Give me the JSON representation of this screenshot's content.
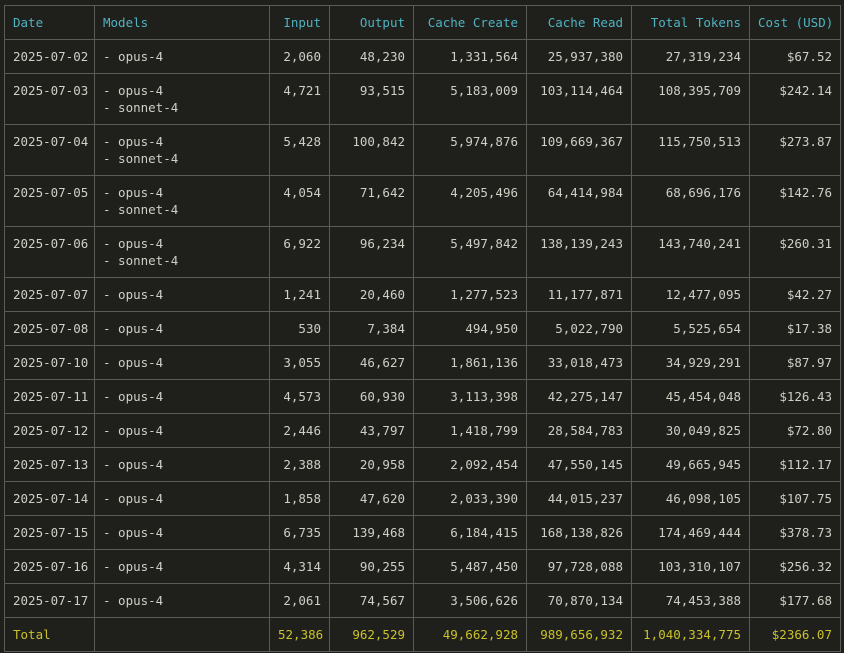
{
  "table": {
    "headers": {
      "date": "Date",
      "models": "Models",
      "input": "Input",
      "output": "Output",
      "cache_create": "Cache Create",
      "cache_read": "Cache Read",
      "total_tokens": "Total Tokens",
      "cost": "Cost (USD)"
    },
    "rows": [
      {
        "date": "2025-07-02",
        "models": [
          "- opus-4"
        ],
        "input": "2,060",
        "output": "48,230",
        "cache_create": "1,331,564",
        "cache_read": "25,937,380",
        "total_tokens": "27,319,234",
        "cost": "$67.52"
      },
      {
        "date": "2025-07-03",
        "models": [
          "- opus-4",
          "- sonnet-4"
        ],
        "input": "4,721",
        "output": "93,515",
        "cache_create": "5,183,009",
        "cache_read": "103,114,464",
        "total_tokens": "108,395,709",
        "cost": "$242.14"
      },
      {
        "date": "2025-07-04",
        "models": [
          "- opus-4",
          "- sonnet-4"
        ],
        "input": "5,428",
        "output": "100,842",
        "cache_create": "5,974,876",
        "cache_read": "109,669,367",
        "total_tokens": "115,750,513",
        "cost": "$273.87"
      },
      {
        "date": "2025-07-05",
        "models": [
          "- opus-4",
          "- sonnet-4"
        ],
        "input": "4,054",
        "output": "71,642",
        "cache_create": "4,205,496",
        "cache_read": "64,414,984",
        "total_tokens": "68,696,176",
        "cost": "$142.76"
      },
      {
        "date": "2025-07-06",
        "models": [
          "- opus-4",
          "- sonnet-4"
        ],
        "input": "6,922",
        "output": "96,234",
        "cache_create": "5,497,842",
        "cache_read": "138,139,243",
        "total_tokens": "143,740,241",
        "cost": "$260.31"
      },
      {
        "date": "2025-07-07",
        "models": [
          "- opus-4"
        ],
        "input": "1,241",
        "output": "20,460",
        "cache_create": "1,277,523",
        "cache_read": "11,177,871",
        "total_tokens": "12,477,095",
        "cost": "$42.27"
      },
      {
        "date": "2025-07-08",
        "models": [
          "- opus-4"
        ],
        "input": "530",
        "output": "7,384",
        "cache_create": "494,950",
        "cache_read": "5,022,790",
        "total_tokens": "5,525,654",
        "cost": "$17.38"
      },
      {
        "date": "2025-07-10",
        "models": [
          "- opus-4"
        ],
        "input": "3,055",
        "output": "46,627",
        "cache_create": "1,861,136",
        "cache_read": "33,018,473",
        "total_tokens": "34,929,291",
        "cost": "$87.97"
      },
      {
        "date": "2025-07-11",
        "models": [
          "- opus-4"
        ],
        "input": "4,573",
        "output": "60,930",
        "cache_create": "3,113,398",
        "cache_read": "42,275,147",
        "total_tokens": "45,454,048",
        "cost": "$126.43"
      },
      {
        "date": "2025-07-12",
        "models": [
          "- opus-4"
        ],
        "input": "2,446",
        "output": "43,797",
        "cache_create": "1,418,799",
        "cache_read": "28,584,783",
        "total_tokens": "30,049,825",
        "cost": "$72.80"
      },
      {
        "date": "2025-07-13",
        "models": [
          "- opus-4"
        ],
        "input": "2,388",
        "output": "20,958",
        "cache_create": "2,092,454",
        "cache_read": "47,550,145",
        "total_tokens": "49,665,945",
        "cost": "$112.17"
      },
      {
        "date": "2025-07-14",
        "models": [
          "- opus-4"
        ],
        "input": "1,858",
        "output": "47,620",
        "cache_create": "2,033,390",
        "cache_read": "44,015,237",
        "total_tokens": "46,098,105",
        "cost": "$107.75"
      },
      {
        "date": "2025-07-15",
        "models": [
          "- opus-4"
        ],
        "input": "6,735",
        "output": "139,468",
        "cache_create": "6,184,415",
        "cache_read": "168,138,826",
        "total_tokens": "174,469,444",
        "cost": "$378.73"
      },
      {
        "date": "2025-07-16",
        "models": [
          "- opus-4"
        ],
        "input": "4,314",
        "output": "90,255",
        "cache_create": "5,487,450",
        "cache_read": "97,728,088",
        "total_tokens": "103,310,107",
        "cost": "$256.32"
      },
      {
        "date": "2025-07-17",
        "models": [
          "- opus-4"
        ],
        "input": "2,061",
        "output": "74,567",
        "cache_create": "3,506,626",
        "cache_read": "70,870,134",
        "total_tokens": "74,453,388",
        "cost": "$177.68"
      }
    ],
    "total": {
      "label": "Total",
      "models": "",
      "input": "52,386",
      "output": "962,529",
      "cache_create": "49,662,928",
      "cache_read": "989,656,932",
      "total_tokens": "1,040,334,775",
      "cost": "$2366.07"
    }
  },
  "colors": {
    "background": "#1f1f1b",
    "border": "#5c5c57",
    "header_text": "#4fb3c2",
    "body_text": "#cfcfc6",
    "total_text": "#c9c22a"
  }
}
